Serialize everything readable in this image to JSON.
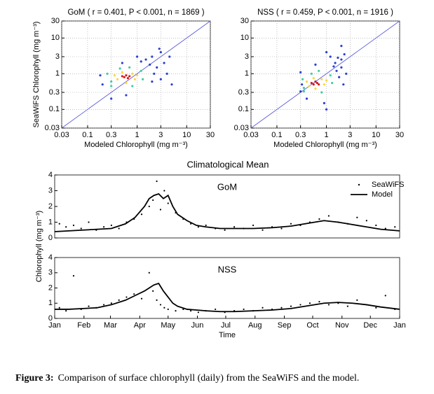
{
  "chart_data": [
    {
      "type": "scatter",
      "title": "GoM ( r = 0.401, P < 0.001, n = 1869 )",
      "x_label": "Modeled Chlorophyll (mg m⁻³)",
      "y_label": "SeaWiFS Chlorophyll (mg m⁻³)",
      "log": true,
      "grid": true,
      "xlim": [
        0.03,
        30
      ],
      "ylim": [
        0.03,
        30
      ],
      "xticks": [
        0.03,
        0.1,
        0.3,
        1,
        3,
        10,
        30
      ],
      "yticks": [
        0.03,
        0.1,
        0.3,
        1,
        3,
        10,
        30
      ],
      "series": [
        {
          "color": "#2b3fd0",
          "x": [
            0.2,
            0.18,
            1.5,
            2,
            3,
            2.5,
            3.5,
            4,
            2,
            1.8,
            3,
            0.3,
            0.6,
            1.2,
            2.8,
            4.5,
            1,
            0.5,
            2.2,
            5
          ],
          "values": [
            0.5,
            0.9,
            2.5,
            3,
            4,
            1.5,
            2,
            1,
            0.6,
            1.8,
            0.7,
            0.2,
            0.25,
            2.2,
            5,
            3,
            3,
            2,
            1,
            0.5
          ]
        },
        {
          "color": "#3fcfa0",
          "x": [
            0.3,
            0.25,
            1.2,
            0.45,
            0.8,
            1.3,
            0.3,
            0.7
          ],
          "values": [
            0.6,
            1.0,
            1.2,
            1.4,
            0.45,
            0.7,
            0.45,
            1.5
          ]
        },
        {
          "color": "#fdd835",
          "x": [
            0.4,
            0.8,
            0.5,
            0.9,
            0.35,
            0.6,
            1.0
          ],
          "values": [
            0.7,
            1.0,
            1.1,
            0.7,
            0.9,
            0.55,
            0.9
          ]
        },
        {
          "color": "#d7191c",
          "x": [
            0.55,
            0.6,
            0.65,
            0.5,
            0.7
          ],
          "values": [
            0.8,
            0.9,
            0.75,
            0.85,
            0.85
          ]
        }
      ]
    },
    {
      "type": "scatter",
      "title": "NSS ( r = 0.459, P < 0.001, n = 1916 )",
      "x_label": "Modeled Chlorophyll (mg m⁻³)",
      "log": true,
      "grid": true,
      "xlim": [
        0.03,
        30
      ],
      "ylim": [
        0.03,
        30
      ],
      "xticks": [
        0.03,
        0.1,
        0.3,
        1,
        3,
        10,
        30
      ],
      "yticks": [
        0.03,
        0.1,
        0.3,
        1,
        3,
        10,
        30
      ],
      "series": [
        {
          "color": "#2b3fd0",
          "x": [
            0.3,
            0.32,
            1.5,
            2,
            2,
            1.8,
            2.5,
            1.2,
            0.9,
            1.6,
            2.3,
            0.4,
            1,
            1.4,
            2.2,
            0.6,
            1,
            2,
            1.7,
            0.3
          ],
          "values": [
            0.32,
            0.5,
            2,
            2.5,
            1.5,
            0.8,
            1,
            3,
            0.15,
            1.2,
            3.5,
            0.2,
            0.1,
            1.6,
            0.5,
            1.8,
            4,
            6,
            2.8,
            1.1
          ]
        },
        {
          "color": "#3fcfa0",
          "x": [
            0.35,
            0.33,
            1.2,
            0.5,
            0.8,
            1.3,
            0.35,
            0.7
          ],
          "values": [
            0.4,
            0.7,
            0.9,
            1.0,
            0.3,
            0.55,
            0.32,
            1.2
          ]
        },
        {
          "color": "#fdd835",
          "x": [
            0.45,
            0.8,
            0.55,
            0.9,
            0.4,
            0.6,
            1.0
          ],
          "values": [
            0.45,
            0.7,
            0.75,
            0.5,
            0.6,
            0.38,
            0.65
          ]
        },
        {
          "color": "#d7191c",
          "x": [
            0.55,
            0.6,
            0.65,
            0.5,
            0.7
          ],
          "values": [
            0.5,
            0.6,
            0.55,
            0.55,
            0.5
          ]
        }
      ]
    },
    {
      "type": "line",
      "title": "Climatological Mean",
      "annotation": "GoM",
      "y_label": "Chlorophyll (mg m⁻³)",
      "legend": "upper right",
      "xlim": [
        0,
        365
      ],
      "ylim": [
        0,
        4
      ],
      "yticks": [
        0,
        1,
        2,
        3,
        4
      ],
      "series": [
        {
          "name": "SeaWiFS",
          "style": "dots",
          "color": "#000000",
          "x": [
            5,
            12,
            20,
            28,
            36,
            44,
            52,
            60,
            68,
            76,
            84,
            92,
            100,
            104,
            108,
            112,
            116,
            120,
            128,
            136,
            144,
            152,
            160,
            170,
            180,
            190,
            200,
            210,
            220,
            230,
            240,
            250,
            260,
            270,
            280,
            290,
            300,
            310,
            320,
            330,
            340,
            350,
            360
          ],
          "values": [
            0.9,
            0.7,
            0.8,
            0.6,
            1.0,
            0.5,
            0.7,
            0.8,
            0.6,
            1.0,
            1.2,
            1.5,
            2.0,
            2.4,
            3.6,
            1.8,
            3.0,
            2.2,
            1.6,
            1.2,
            0.9,
            0.7,
            0.8,
            0.6,
            0.5,
            0.7,
            0.6,
            0.8,
            0.5,
            0.7,
            0.6,
            0.9,
            0.8,
            1.0,
            1.2,
            1.4,
            1.0,
            0.9,
            1.3,
            1.1,
            0.8,
            0.6,
            0.7
          ]
        },
        {
          "name": "Model",
          "style": "line",
          "color": "#000000",
          "x": [
            0,
            15,
            30,
            45,
            60,
            75,
            85,
            95,
            100,
            105,
            110,
            115,
            120,
            125,
            130,
            140,
            150,
            160,
            175,
            190,
            210,
            230,
            250,
            270,
            285,
            300,
            315,
            330,
            345,
            365
          ],
          "values": [
            0.4,
            0.45,
            0.5,
            0.55,
            0.6,
            0.9,
            1.3,
            2.0,
            2.5,
            2.7,
            2.8,
            2.5,
            2.7,
            2.0,
            1.5,
            1.1,
            0.8,
            0.7,
            0.6,
            0.6,
            0.6,
            0.65,
            0.75,
            0.95,
            1.1,
            1.0,
            0.85,
            0.7,
            0.55,
            0.45
          ]
        }
      ]
    },
    {
      "type": "line",
      "annotation": "NSS",
      "x_label": "Time",
      "xlim": [
        0,
        365
      ],
      "ylim": [
        0,
        4
      ],
      "yticks": [
        0,
        1,
        2,
        3,
        4
      ],
      "xticks": [
        {
          "value": 0,
          "label": "Jan"
        },
        {
          "value": 31,
          "label": "Feb"
        },
        {
          "value": 59,
          "label": "Mar"
        },
        {
          "value": 90,
          "label": "Apr"
        },
        {
          "value": 120,
          "label": "May"
        },
        {
          "value": 151,
          "label": "Jun"
        },
        {
          "value": 181,
          "label": "Jul"
        },
        {
          "value": 212,
          "label": "Aug"
        },
        {
          "value": 243,
          "label": "Sep"
        },
        {
          "value": 273,
          "label": "Oct"
        },
        {
          "value": 304,
          "label": "Nov"
        },
        {
          "value": 334,
          "label": "Dec"
        },
        {
          "value": 365,
          "label": "Jan"
        }
      ],
      "series": [
        {
          "style": "dots",
          "color": "#000000",
          "x": [
            5,
            12,
            20,
            28,
            36,
            44,
            52,
            60,
            68,
            76,
            84,
            92,
            100,
            104,
            108,
            112,
            116,
            120,
            128,
            136,
            144,
            152,
            160,
            170,
            180,
            190,
            200,
            210,
            220,
            230,
            240,
            250,
            260,
            270,
            280,
            290,
            300,
            310,
            320,
            330,
            340,
            350,
            360
          ],
          "values": [
            0.7,
            0.5,
            2.8,
            0.6,
            0.8,
            0.7,
            0.9,
            1.0,
            1.2,
            1.4,
            1.6,
            1.3,
            3.0,
            1.8,
            1.2,
            0.9,
            0.7,
            0.6,
            0.5,
            0.6,
            0.5,
            0.4,
            0.5,
            0.6,
            0.4,
            0.5,
            0.6,
            0.5,
            0.7,
            0.6,
            0.7,
            0.8,
            0.9,
            1.0,
            1.1,
            0.9,
            1.0,
            0.8,
            1.2,
            0.9,
            0.7,
            1.5,
            0.6
          ]
        },
        {
          "style": "line",
          "color": "#000000",
          "x": [
            0,
            15,
            30,
            45,
            60,
            75,
            85,
            95,
            100,
            105,
            110,
            115,
            120,
            125,
            130,
            140,
            150,
            160,
            175,
            190,
            210,
            230,
            250,
            270,
            285,
            300,
            315,
            330,
            345,
            365
          ],
          "values": [
            0.6,
            0.6,
            0.65,
            0.7,
            0.9,
            1.2,
            1.5,
            1.8,
            2.0,
            2.2,
            2.3,
            1.8,
            1.4,
            1.0,
            0.8,
            0.6,
            0.55,
            0.5,
            0.45,
            0.45,
            0.5,
            0.55,
            0.65,
            0.85,
            1.0,
            1.05,
            1.0,
            0.9,
            0.75,
            0.6
          ]
        }
      ]
    }
  ],
  "caption": {
    "label": "Figure 3:",
    "text": "Comparison of surface chlorophyll (daily) from the SeaWiFS and the model."
  }
}
